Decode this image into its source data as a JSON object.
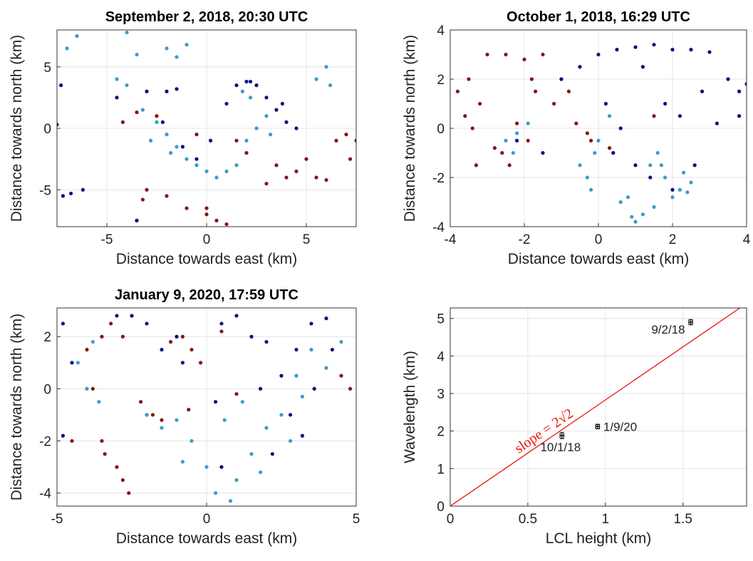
{
  "chart_data": [
    {
      "type": "scatter",
      "title": "September 2, 2018, 20:30 UTC",
      "xlabel": "Distance towards east (km)",
      "ylabel": "Distance towards north (km)",
      "xlim": [
        -7.5,
        7.5
      ],
      "ylim": [
        -8,
        8
      ],
      "xticks": [
        -5,
        0,
        5
      ],
      "yticks": [
        -5,
        0,
        5
      ],
      "grid": true,
      "series": [
        {
          "color": "#3a9cc8",
          "x": [
            -7,
            -6.5,
            -4,
            -3.5,
            -2,
            -1.5,
            -1,
            6,
            5.5,
            6.2,
            -4.5,
            -4,
            -3.2,
            -2.5,
            -2,
            -1.5,
            -1,
            -0.5,
            0,
            -2.8,
            -1.8,
            0.5,
            1,
            1.5,
            2,
            2.5,
            3,
            2.2,
            1.8,
            3.2
          ],
          "y": [
            6.5,
            7.5,
            7.8,
            6,
            6.5,
            5.8,
            6.8,
            5,
            4,
            3.5,
            4,
            3.5,
            1.5,
            0.5,
            -0.5,
            -1.5,
            -2.5,
            -3,
            -3.5,
            -1,
            -2,
            -4,
            -3.5,
            -3,
            -1,
            0,
            1,
            2.5,
            3,
            -0.5
          ]
        },
        {
          "color": "#0d0d85",
          "x": [
            -7.5,
            -7.2,
            -4.5,
            -3,
            -2,
            -1.5,
            -3.5,
            1.5,
            2,
            2.5,
            3,
            3.5,
            4,
            4.5,
            1,
            -6.2,
            -3.5,
            -2.2,
            0.2,
            -0.5,
            3.8,
            2.2,
            -7.3,
            -6.8,
            -1.2
          ],
          "y": [
            0.3,
            -5.5,
            2.5,
            3,
            3,
            3.2,
            -7.5,
            3.5,
            3.8,
            3.5,
            2.5,
            1.5,
            0.5,
            0,
            2,
            -5,
            -7.5,
            0.5,
            -1,
            -2.5,
            2,
            3.8,
            3.5,
            -5.3,
            -1.5
          ]
        },
        {
          "color": "#8b1414",
          "x": [
            -4.2,
            -2.5,
            -3,
            1.5,
            2,
            3.5,
            4,
            4.5,
            5,
            5.5,
            6.5,
            7,
            7.5,
            7.2,
            -2,
            -1,
            0,
            0.5,
            1,
            -0.5,
            -3.5,
            0,
            -3.2,
            3,
            6
          ],
          "y": [
            0.5,
            1,
            -5,
            -1,
            -2,
            -3,
            -4,
            -3.5,
            -2.5,
            -4,
            -1,
            -0.5,
            -1,
            -2.5,
            -5.5,
            -6.5,
            -7,
            -7.5,
            -7.8,
            -0.5,
            1.3,
            -6.5,
            -5.8,
            -4.5,
            -4.2
          ]
        }
      ]
    },
    {
      "type": "scatter",
      "title": "October 1, 2018, 16:29 UTC",
      "xlabel": "Distance towards east (km)",
      "ylabel": "Distance towards north (km)",
      "xlim": [
        -4,
        4
      ],
      "ylim": [
        -4,
        4
      ],
      "xticks": [
        -4,
        -2,
        0,
        2,
        4
      ],
      "yticks": [
        -4,
        -2,
        0,
        2,
        4
      ],
      "grid": true,
      "series": [
        {
          "color": "#8b1414",
          "x": [
            -3.8,
            -3.5,
            -3.2,
            -3.6,
            -3.3,
            -2.5,
            -2,
            -1.8,
            -1.5,
            -1,
            -0.8,
            -2.6,
            -2.4,
            -2.8,
            -0.2,
            -0.3,
            -3,
            -1.7,
            -1.2,
            0.3,
            1.5,
            -3.4,
            -2.2,
            -0.6,
            -1.9
          ],
          "y": [
            1.5,
            2,
            1,
            0.5,
            -1.5,
            3,
            2.8,
            2,
            3,
            2,
            1.5,
            -1,
            -1.5,
            -0.8,
            -0.5,
            -0.2,
            3,
            1.5,
            1,
            -0.8,
            0.5,
            0,
            0.2,
            0.2,
            -0.5
          ]
        },
        {
          "color": "#0d0d85",
          "x": [
            -1,
            -0.5,
            0,
            0.5,
            1,
            1.5,
            2,
            2.5,
            3,
            3.5,
            3.8,
            4,
            0.2,
            0.6,
            1.2,
            1.8,
            2.2,
            2.6,
            3.2,
            1,
            1.4,
            -2.2,
            -1.5,
            3.8,
            2.8,
            0.4,
            2
          ],
          "y": [
            2,
            2.5,
            3,
            3.2,
            3.3,
            3.4,
            3.2,
            3.2,
            3.1,
            2,
            1.5,
            1.8,
            1,
            0,
            2.5,
            1,
            0.5,
            -1.5,
            0.2,
            -1.5,
            -2,
            -0.5,
            -1,
            0.5,
            1.5,
            -1,
            -2.5
          ]
        },
        {
          "color": "#3a9cc8",
          "x": [
            -2.5,
            -2.2,
            -1.9,
            -0.5,
            -0.3,
            0,
            0.3,
            0.6,
            -0.2,
            1.2,
            1.5,
            1.8,
            2.2,
            2.5,
            1,
            0.8,
            1.6,
            -2.3,
            1.4,
            2,
            -0.1,
            2.3,
            0.9,
            1.7,
            2.4
          ],
          "y": [
            -0.5,
            -0.2,
            0.2,
            -1.5,
            -2,
            -0.5,
            0.5,
            -3,
            -2.5,
            -3.5,
            -3.2,
            -2,
            -2.5,
            -2.2,
            -3.8,
            -2.8,
            -1,
            -1,
            -1.5,
            -2.8,
            -1,
            -1.8,
            -3.6,
            -1.5,
            -2.6
          ]
        }
      ]
    },
    {
      "type": "scatter",
      "title": "January 9, 2020, 17:59 UTC",
      "xlabel": "Distance towards east (km)",
      "ylabel": "Distance towards north (km)",
      "xlim": [
        -5,
        5
      ],
      "ylim": [
        -4.5,
        3.1
      ],
      "xticks": [
        -5,
        0,
        5
      ],
      "yticks": [
        -4,
        -2,
        0,
        2
      ],
      "grid": true,
      "series": [
        {
          "color": "#8b1414",
          "x": [
            -4,
            -3.5,
            -3.2,
            -2.8,
            -2.5,
            -3.8,
            -3.5,
            -3,
            -2.8,
            -2.6,
            -2.2,
            -1.8,
            -0.8,
            -0.5,
            -0.2,
            0.5,
            1,
            -4.5,
            -1.5,
            4.5,
            4.8,
            -1.2,
            -2,
            -3.4,
            -0.6
          ],
          "y": [
            1.5,
            2,
            2.5,
            2,
            2.8,
            0,
            -2,
            -3,
            -3.5,
            -4,
            -0.5,
            -1,
            2,
            1.5,
            1,
            2.2,
            -0.2,
            -2,
            -1.2,
            0.5,
            0,
            1.8,
            -1,
            -2.5,
            -0.8
          ]
        },
        {
          "color": "#0d0d85",
          "x": [
            -4.8,
            -4.5,
            -2.5,
            -2,
            -1.5,
            -1,
            0.5,
            1,
            1.5,
            2,
            2.5,
            3,
            3.5,
            4,
            4.2,
            2.8,
            3.2,
            0.3,
            1.8,
            -4.8,
            -3,
            0.5,
            2.2,
            3.6,
            -0.8
          ],
          "y": [
            2.5,
            1,
            2.8,
            2.5,
            1.5,
            2,
            2.5,
            2.8,
            2,
            1.8,
            0.5,
            1.5,
            2.5,
            2.7,
            1.5,
            -1,
            -1.8,
            -0.5,
            0,
            -1.8,
            2.8,
            -3,
            -2.5,
            0,
            1
          ]
        },
        {
          "color": "#3a9cc8",
          "x": [
            -4.3,
            -4,
            -3.6,
            -2,
            -1.5,
            -1,
            -0.5,
            0,
            0.3,
            0.8,
            1,
            1.5,
            2,
            2.5,
            3,
            3.5,
            4,
            4.5,
            -0.8,
            0.6,
            1.2,
            1.8,
            2.8,
            3.2,
            -3.8
          ],
          "y": [
            1,
            0,
            -0.5,
            -1,
            -1.5,
            -1.2,
            -2,
            -3,
            -4,
            -4.3,
            -3.5,
            -2.5,
            -1.5,
            -1,
            0.5,
            1.5,
            0.8,
            1.8,
            -2.8,
            -1.2,
            -0.5,
            -3.2,
            -2,
            -0.3,
            1.8
          ]
        }
      ]
    },
    {
      "type": "errorbar",
      "xlabel": "LCL height (km)",
      "ylabel": "Wavelength (km)",
      "xlim": [
        0,
        1.91
      ],
      "ylim": [
        0,
        5.28
      ],
      "xticks": [
        0,
        0.5,
        1,
        1.5
      ],
      "yticks": [
        0,
        1,
        2,
        3,
        4,
        5
      ],
      "grid": true,
      "series": [
        {
          "color": "#000000",
          "x": [
            0.72,
            0.95,
            1.55
          ],
          "y": [
            1.88,
            2.12,
            4.9
          ],
          "xerr": [
            0.012,
            0.012,
            0.012
          ],
          "yerr": [
            0.08,
            0.06,
            0.07
          ],
          "point_labels": [
            "10/1/18",
            "1/9/20",
            "9/2/18"
          ]
        }
      ],
      "reference_line": {
        "slope": 2.828,
        "intercept": 0,
        "color": "#e8140c",
        "label": "slope = 2√2"
      }
    }
  ]
}
